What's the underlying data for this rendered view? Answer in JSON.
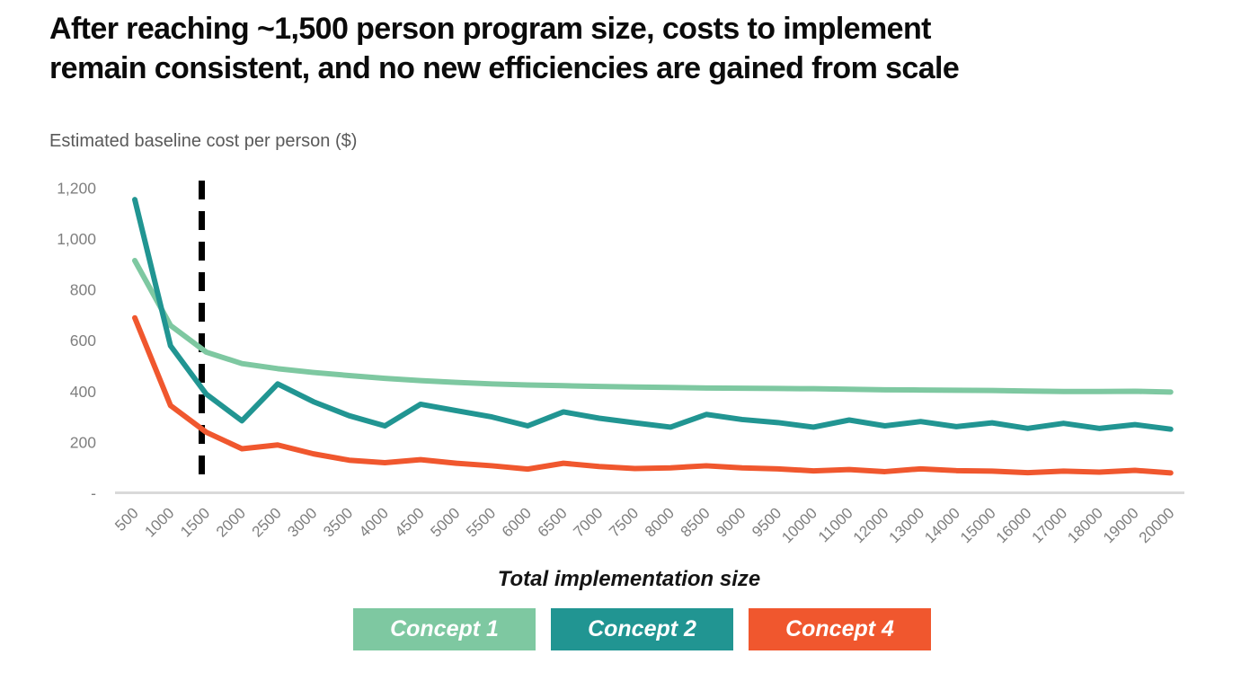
{
  "header": {
    "title_line1": "After reaching ~1,500 person program size, costs to implement",
    "title_line2": "remain consistent, and no new efficiencies are gained from scale"
  },
  "chart_data": {
    "type": "line",
    "title": "After reaching ~1,500 person program size, costs to implement remain consistent, and no new efficiencies are gained from scale",
    "y_axis_title": "Estimated baseline cost per person ($)",
    "x_axis_title": "Total implementation size",
    "ylim": [
      0,
      1260
    ],
    "grid": false,
    "legend_position": "bottom",
    "y_ticks": [
      {
        "label": "1,200",
        "value": 1200
      },
      {
        "label": "1,000",
        "value": 1000
      },
      {
        "label": "800",
        "value": 800
      },
      {
        "label": "600",
        "value": 600
      },
      {
        "label": "400",
        "value": 400
      },
      {
        "label": "200",
        "value": 200
      },
      {
        "label": "-",
        "value": 0
      }
    ],
    "categories": [
      "500",
      "1000",
      "1500",
      "2000",
      "2500",
      "3000",
      "3500",
      "4000",
      "4500",
      "5000",
      "5500",
      "6000",
      "6500",
      "7000",
      "7500",
      "8000",
      "8500",
      "9000",
      "9500",
      "10000",
      "11000",
      "12000",
      "13000",
      "14000",
      "15000",
      "16000",
      "17000",
      "18000",
      "19000",
      "20000"
    ],
    "annotation": {
      "type": "dashed-vertical-line",
      "at_category": "1500",
      "color": "#000000"
    },
    "series": [
      {
        "name": "Concept 1",
        "color": "#7EC8A1",
        "values": [
          915,
          660,
          555,
          510,
          490,
          475,
          463,
          452,
          443,
          436,
          430,
          426,
          423,
          420,
          418,
          416,
          414,
          413,
          412,
          411,
          409,
          407,
          406,
          405,
          404,
          402,
          400,
          400,
          401,
          398
        ]
      },
      {
        "name": "Concept 2",
        "color": "#219592",
        "values": [
          1155,
          580,
          390,
          285,
          430,
          360,
          305,
          265,
          350,
          325,
          300,
          265,
          320,
          295,
          277,
          260,
          310,
          290,
          278,
          260,
          288,
          265,
          282,
          262,
          277,
          255,
          275,
          255,
          270,
          252
        ]
      },
      {
        "name": "Concept 4",
        "color": "#F0572E",
        "values": [
          690,
          345,
          240,
          175,
          190,
          155,
          130,
          120,
          132,
          118,
          108,
          95,
          118,
          105,
          97,
          100,
          108,
          100,
          96,
          88,
          93,
          85,
          96,
          89,
          87,
          81,
          87,
          83,
          90,
          80
        ]
      }
    ],
    "axis_text_color": "#7f7f7f",
    "axis_line_color": "#d9d9d9"
  }
}
